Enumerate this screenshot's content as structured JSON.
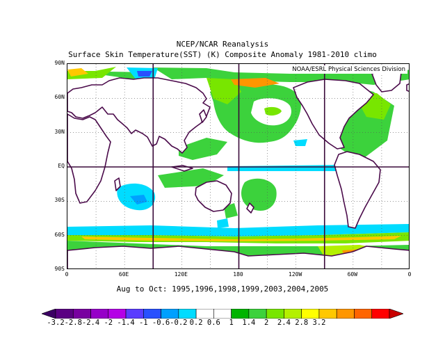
{
  "header": {
    "title": "NCEP/NCAR Reanalysis",
    "subtitle": "Surface Skin Temperature(SST) (K) Composite Anomaly 1981-2010 climo"
  },
  "map": {
    "credit": "NOAA/ESRL Physical Sciences Division",
    "lat_labels": [
      "90N",
      "60N",
      "30N",
      "EQ",
      "30S",
      "60S",
      "90S"
    ],
    "lon_labels": [
      "0",
      "60E",
      "120E",
      "180",
      "120W",
      "60W",
      "0"
    ],
    "projection": "cylindrical equidistant",
    "lon_range": [
      0,
      360
    ],
    "lat_range": [
      -90,
      90
    ],
    "gridlines": "dotted every 30°",
    "thick_lines": [
      "0° lat",
      "75°E",
      "180°",
      "105°W"
    ]
  },
  "period": "Aug to Oct: 1995,1996,1998,1999,2003,2004,2005",
  "colorbar": {
    "labels": [
      "-3.2",
      "-2.8",
      "-2.4",
      "-2",
      "-1.4",
      "-1",
      "-0.6",
      "-0.2",
      "0.2",
      "0.6",
      "1",
      "1.4",
      "2",
      "2.4",
      "2.8",
      "3.2"
    ],
    "colors": [
      "#3c0064",
      "#5a0082",
      "#7800a0",
      "#9600c8",
      "#b400e6",
      "#5a3cff",
      "#2850ff",
      "#00a0ff",
      "#00dcff",
      "#ffffff",
      "#ffffff",
      "#00b400",
      "#3cd23c",
      "#78e600",
      "#b4f000",
      "#ffff00",
      "#ffc800",
      "#ff9600",
      "#ff6400",
      "#ff0000",
      "#c80000"
    ]
  },
  "chart_data": {
    "type": "heatmap",
    "title": "NCEP/NCAR Reanalysis",
    "subtitle": "Surface Skin Temperature(SST) (K) Composite Anomaly 1981-2010 climo",
    "units": "K",
    "x_ticks": [
      "0",
      "60E",
      "120E",
      "180",
      "120W",
      "60W",
      "0"
    ],
    "y_ticks": [
      "90N",
      "60N",
      "30N",
      "EQ",
      "30S",
      "60S",
      "90S"
    ],
    "color_levels": [
      -3.2,
      -2.8,
      -2.4,
      -2,
      -1.4,
      -1,
      -0.6,
      -0.2,
      0.2,
      0.6,
      1,
      1.4,
      2,
      2.4,
      2.8,
      3.2
    ],
    "composite_period": "Aug to Oct: 1995,1996,1998,1999,2003,2004,2005",
    "anomaly_regions": [
      {
        "lon": [
          60,
          110
        ],
        "lat": [
          -55,
          -20
        ],
        "value": -0.4
      },
      {
        "lon": [
          80,
          120
        ],
        "lat": [
          75,
          90
        ],
        "value": -0.8
      },
      {
        "lon": [
          160,
          280
        ],
        "lat": [
          -2,
          2
        ],
        "value": -0.4
      },
      {
        "lon": [
          170,
          230
        ],
        "lat": [
          30,
          50
        ],
        "value": 0.4
      },
      {
        "lon": [
          0,
          360
        ],
        "lat": [
          -65,
          -60
        ],
        "value": 2.0
      },
      {
        "lon": [
          170,
          210
        ],
        "lat": [
          80,
          90
        ],
        "value": 2.4
      },
      {
        "lon": [
          300,
          345
        ],
        "lat": [
          -75,
          -62
        ],
        "value": 2.4
      }
    ]
  }
}
